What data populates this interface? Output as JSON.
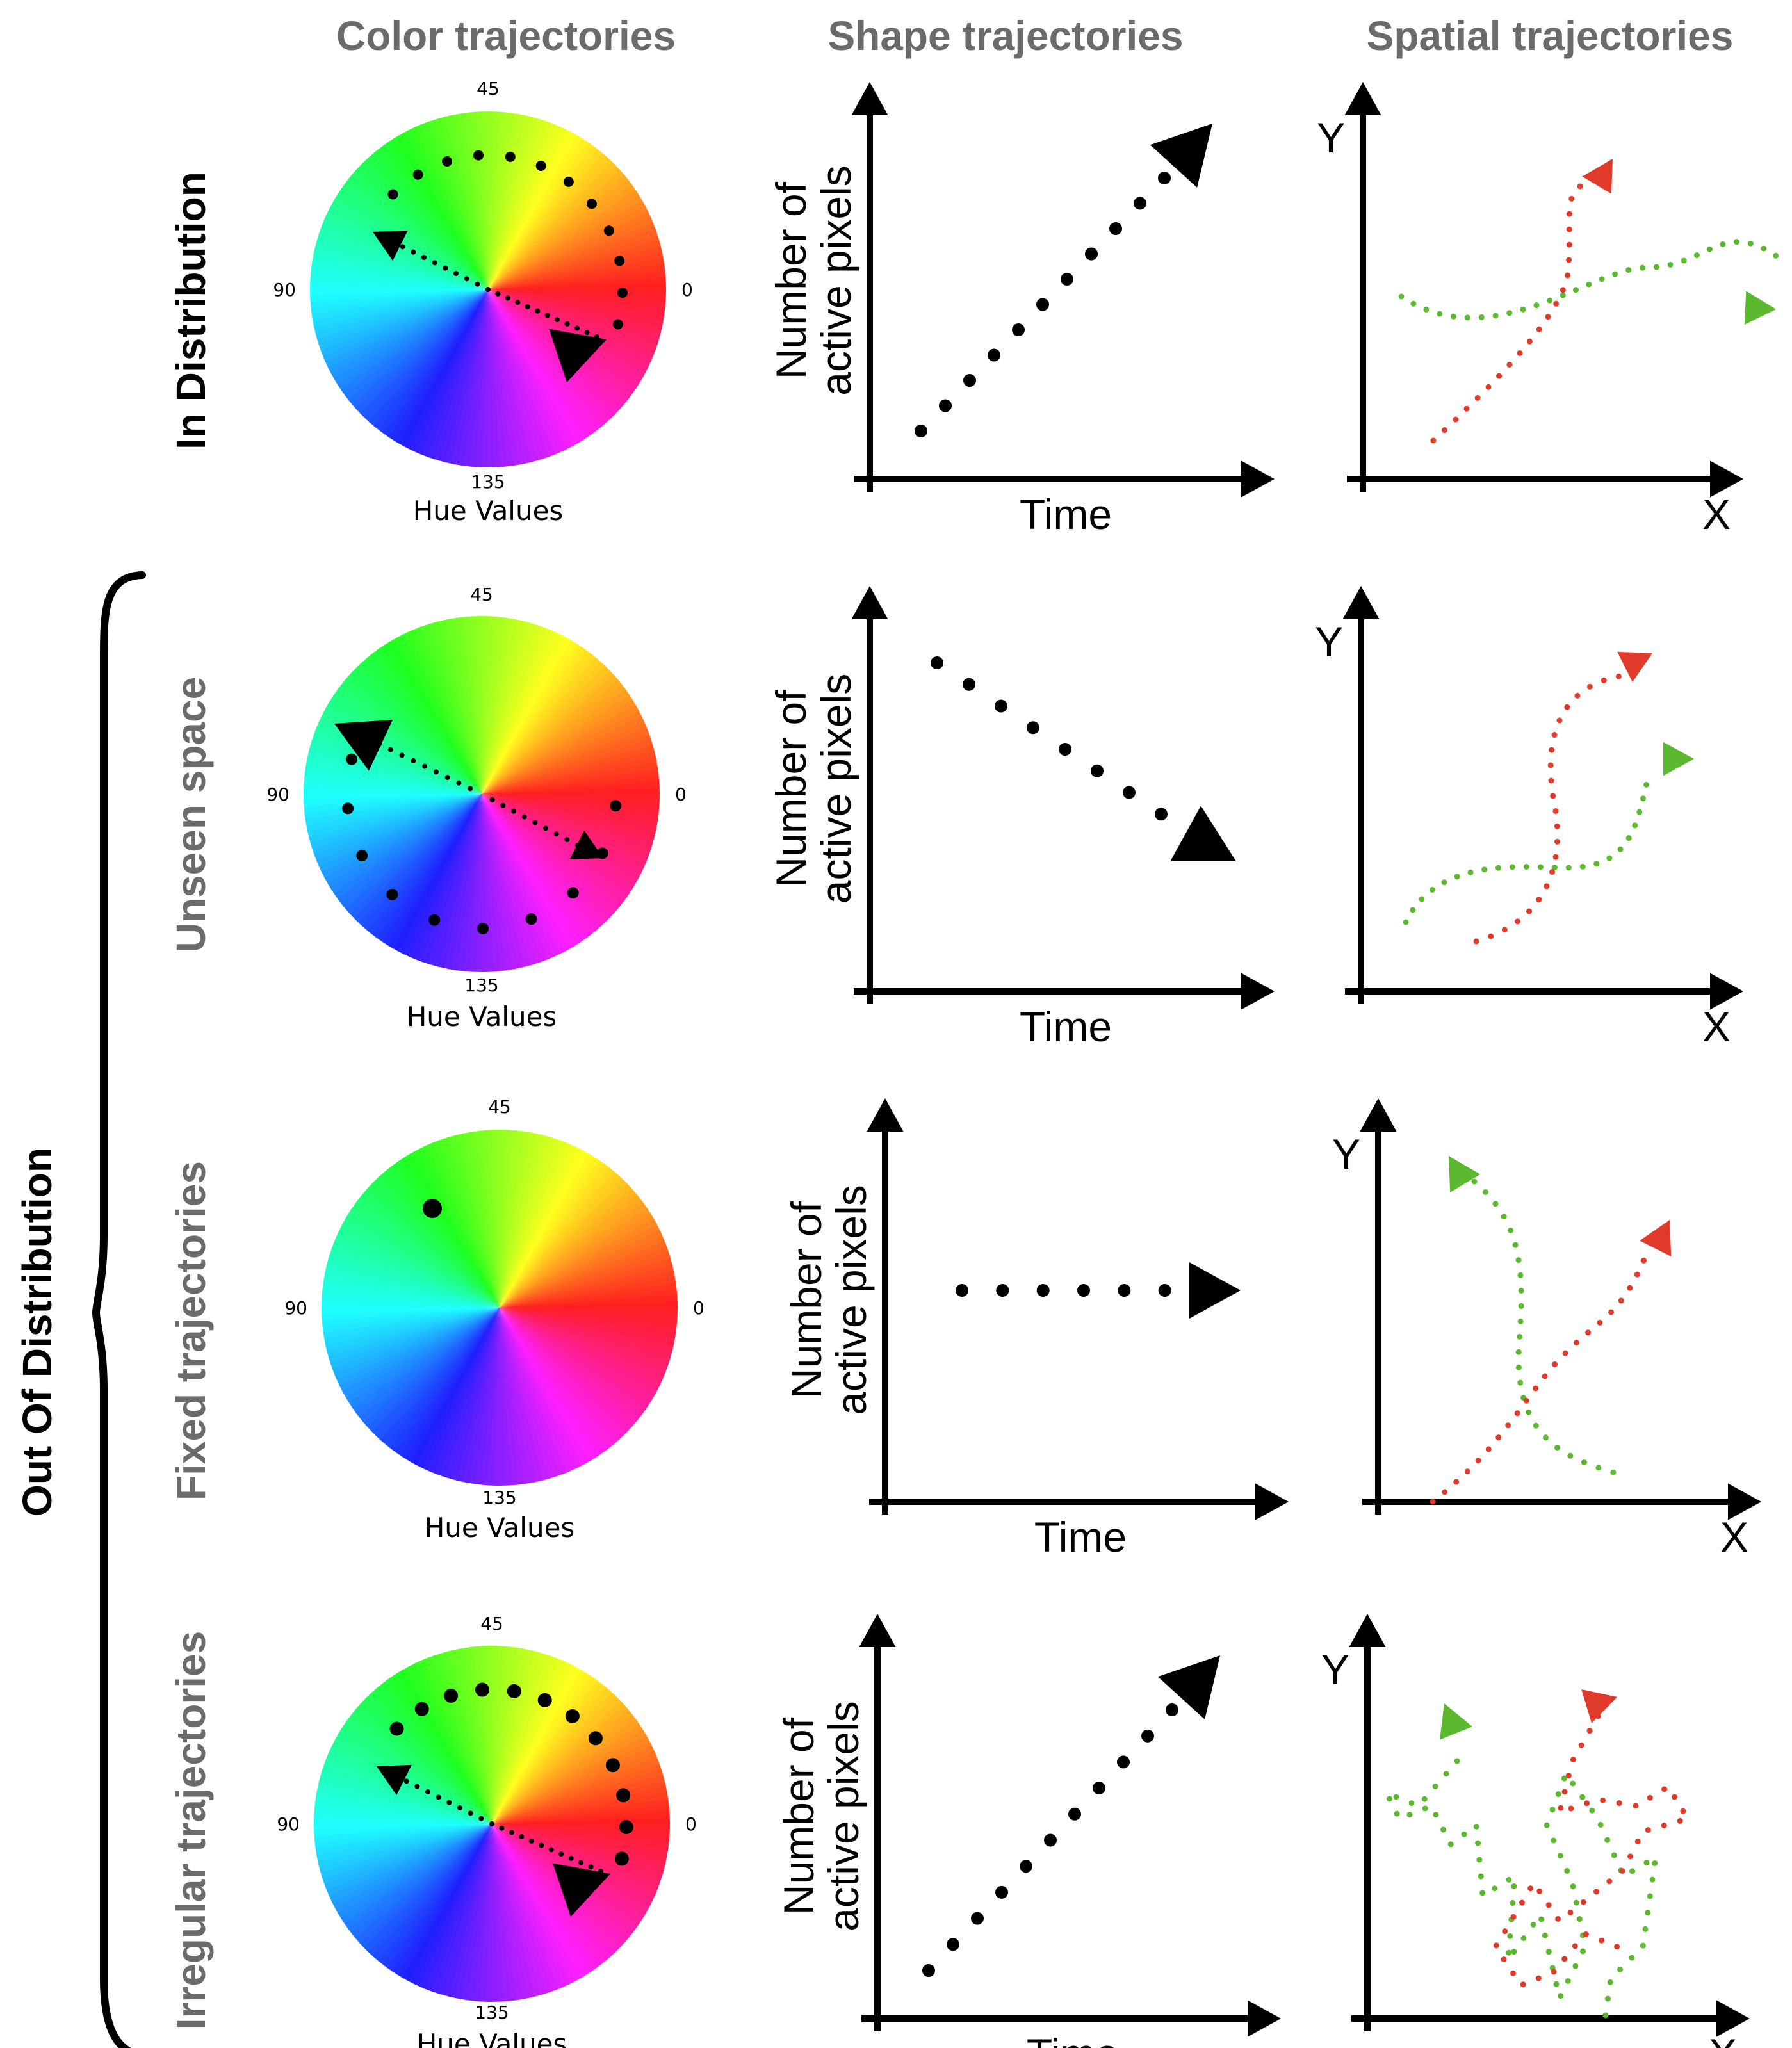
{
  "columns": {
    "color": "Color trajectories",
    "shape": "Shape trajectories",
    "spatial": "Spatial trajectories"
  },
  "group_label": "Out Of Distribution",
  "rows": [
    {
      "label": "In Distribution"
    },
    {
      "label": "Unseen space"
    },
    {
      "label": "Fixed trajectories"
    },
    {
      "label": "Irregular trajectories"
    }
  ],
  "hue_wheel": {
    "ticks": {
      "top": "45",
      "left": "90",
      "right": "0",
      "bottom": "135"
    },
    "caption": "Hue Values"
  },
  "shape_axes": {
    "x_label": "Time",
    "y_label_line1": "Number of",
    "y_label_line2": "active pixels"
  },
  "spatial_axes": {
    "x_label": "X",
    "y_label": "Y"
  },
  "colors": {
    "title_gray": "#6b6b6b",
    "red_trajectory": "#e03a2a",
    "green_trajectory": "#5cb82e",
    "ink": "#000000"
  },
  "icons": [
    "hue-wheel-icon",
    "arrowhead-icon",
    "curly-brace-icon"
  ]
}
